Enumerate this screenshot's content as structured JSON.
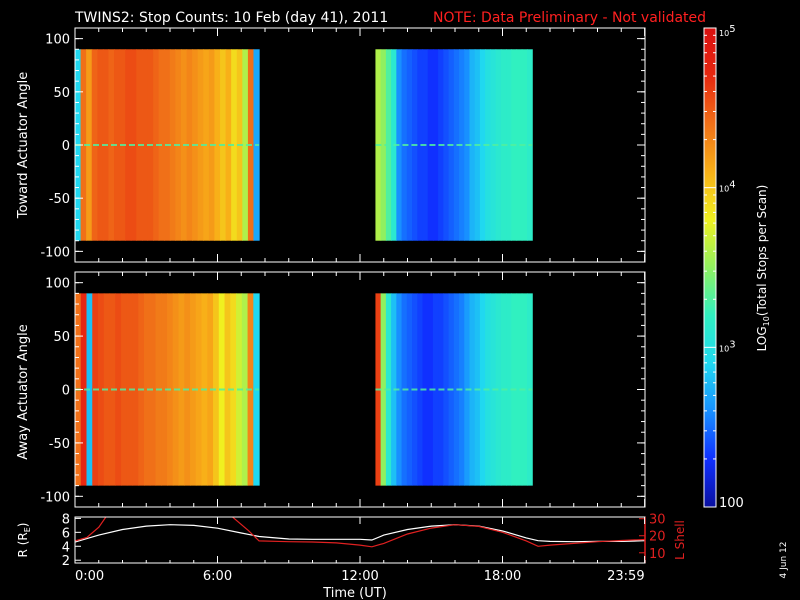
{
  "header": {
    "title": "TWINS2: Stop Counts: 10 Feb (day  41), 2011",
    "note": "NOTE: Data Preliminary - Not validated"
  },
  "colors": {
    "background": "#000000",
    "frame": "#ffffff",
    "note": "#ff2020",
    "r_line": "#ffffff",
    "lshell_line": "#e02020",
    "colormap": [
      "#0a10a0",
      "#1030ff",
      "#1890ff",
      "#20d8f0",
      "#30f0c0",
      "#90f060",
      "#f0f020",
      "#f8b018",
      "#f07018",
      "#e82810",
      "#d81010"
    ]
  },
  "stamp": "4 Jun 12",
  "chart_data": [
    {
      "type": "heatmap",
      "name": "toward",
      "ylabel": "Toward Actuator Angle",
      "ylim": [
        -110,
        110
      ],
      "yticks": [
        100,
        50,
        0,
        -50,
        -100
      ],
      "x_unit_hours": [
        0,
        24
      ],
      "xticks": [
        0,
        6,
        12,
        18,
        23.983
      ],
      "data_y_range": [
        -90,
        90
      ],
      "blocks": [
        {
          "start_hour": 0.0,
          "end_hour": 7.75,
          "profile": [
            2.9,
            4.4,
            4.2,
            4.45,
            4.5,
            4.5,
            4.45,
            4.5,
            4.5,
            4.55,
            4.55,
            4.5,
            4.5,
            4.5,
            4.45,
            4.4,
            4.4,
            4.35,
            4.3,
            4.25,
            4.3,
            4.25,
            4.2,
            4.15,
            4.2,
            4.1,
            4.0,
            4.1,
            3.9,
            4.0,
            3.6,
            4.4,
            2.7
          ]
        },
        {
          "start_hour": 12.65,
          "end_hour": 19.25,
          "profile": [
            3.6,
            3.5,
            3.3,
            3.1,
            2.6,
            2.5,
            2.45,
            2.4,
            2.35,
            2.35,
            2.3,
            2.3,
            2.35,
            2.4,
            2.45,
            2.5,
            2.55,
            2.6,
            2.75,
            2.8,
            2.9,
            3.0,
            3.05,
            3.1,
            3.15,
            3.15,
            3.2,
            3.2,
            3.2,
            3.15
          ]
        }
      ]
    },
    {
      "type": "heatmap",
      "name": "away",
      "ylabel": "Away Actuator Angle",
      "ylim": [
        -110,
        110
      ],
      "yticks": [
        100,
        50,
        0,
        -50,
        -100
      ],
      "x_unit_hours": [
        0,
        24
      ],
      "xticks": [
        0,
        6,
        12,
        18,
        23.983
      ],
      "data_y_range": [
        -90,
        90
      ],
      "blocks": [
        {
          "start_hour": 0.0,
          "end_hour": 7.75,
          "profile": [
            4.4,
            4.7,
            2.8,
            4.6,
            4.55,
            4.5,
            4.5,
            4.55,
            4.5,
            4.5,
            4.5,
            4.45,
            4.4,
            4.4,
            4.35,
            4.35,
            4.3,
            4.25,
            4.2,
            4.25,
            4.2,
            4.15,
            4.1,
            4.15,
            4.0,
            3.8,
            4.0,
            3.9,
            3.7,
            3.6,
            4.3,
            2.9
          ]
        },
        {
          "start_hour": 12.65,
          "end_hour": 19.25,
          "profile": [
            4.6,
            3.5,
            3.1,
            2.8,
            2.6,
            2.5,
            2.45,
            2.4,
            2.35,
            2.3,
            2.3,
            2.35,
            2.35,
            2.4,
            2.45,
            2.5,
            2.55,
            2.65,
            2.75,
            2.8,
            2.9,
            3.0,
            3.05,
            3.1,
            3.15,
            3.15,
            3.2,
            3.2,
            3.2,
            3.15
          ]
        }
      ]
    },
    {
      "type": "line",
      "name": "orbit",
      "xlabel": "Time (UT)",
      "ylabel_left": "R (R",
      "ylabel_left_sub": "E",
      "ylabel_left_end": ")",
      "ylabel_right": "L Shell",
      "ylim_left": [
        1.6,
        8.2
      ],
      "yticks_left": [
        8,
        6,
        4,
        2
      ],
      "ylim_right": [
        4,
        31
      ],
      "yticks_right": [
        30,
        20,
        10
      ],
      "xticks": [
        0,
        6,
        12,
        18,
        23.983
      ],
      "xtick_labels": [
        "0:00",
        "6:00",
        "12:00",
        "18:00",
        "23:59"
      ],
      "series": [
        {
          "x": [
            0,
            1,
            2,
            3,
            4,
            5,
            6,
            7,
            7.75,
            9,
            10,
            11,
            12,
            12.5,
            13,
            14,
            15,
            16,
            17,
            18,
            19,
            19.5,
            20,
            21,
            22,
            23,
            24
          ],
          "y": [
            4.6,
            5.6,
            6.4,
            6.9,
            7.1,
            7.0,
            6.6,
            5.9,
            5.4,
            5.05,
            5.0,
            5.0,
            5.0,
            4.9,
            5.6,
            6.4,
            6.9,
            7.1,
            6.9,
            6.2,
            5.2,
            4.8,
            4.7,
            4.65,
            4.7,
            4.7,
            4.8
          ]
        }
      ],
      "series_right": [
        {
          "x": [
            0,
            0.5,
            1,
            1.5,
            6.3,
            6.8,
            7.3,
            7.75,
            9,
            10,
            11,
            12,
            12.5,
            13,
            14,
            15,
            16,
            17,
            18,
            19,
            19.5,
            20,
            21,
            22,
            23,
            24
          ],
          "y": [
            17,
            19,
            25,
            35,
            35,
            29,
            23,
            17,
            16.5,
            16.3,
            15.8,
            14.5,
            13.5,
            15.5,
            21,
            24.5,
            26.5,
            25.5,
            22,
            17,
            13.8,
            14.5,
            15.5,
            16.5,
            17.2,
            17.8
          ]
        }
      ]
    },
    {
      "type": "colorbar",
      "name": "colorbar",
      "label": "LOG",
      "label_sub": "10",
      "label_tail": "(Total Stops per Scan)",
      "scale": "log",
      "range": [
        100,
        100000
      ],
      "labels": [
        {
          "value": 100000,
          "base": "10",
          "exp": "5"
        },
        {
          "value": 10000,
          "base": "10",
          "exp": "4"
        },
        {
          "value": 1000,
          "base": "10",
          "exp": "3"
        },
        {
          "value": 100,
          "base": "100",
          "exp": ""
        }
      ]
    }
  ]
}
